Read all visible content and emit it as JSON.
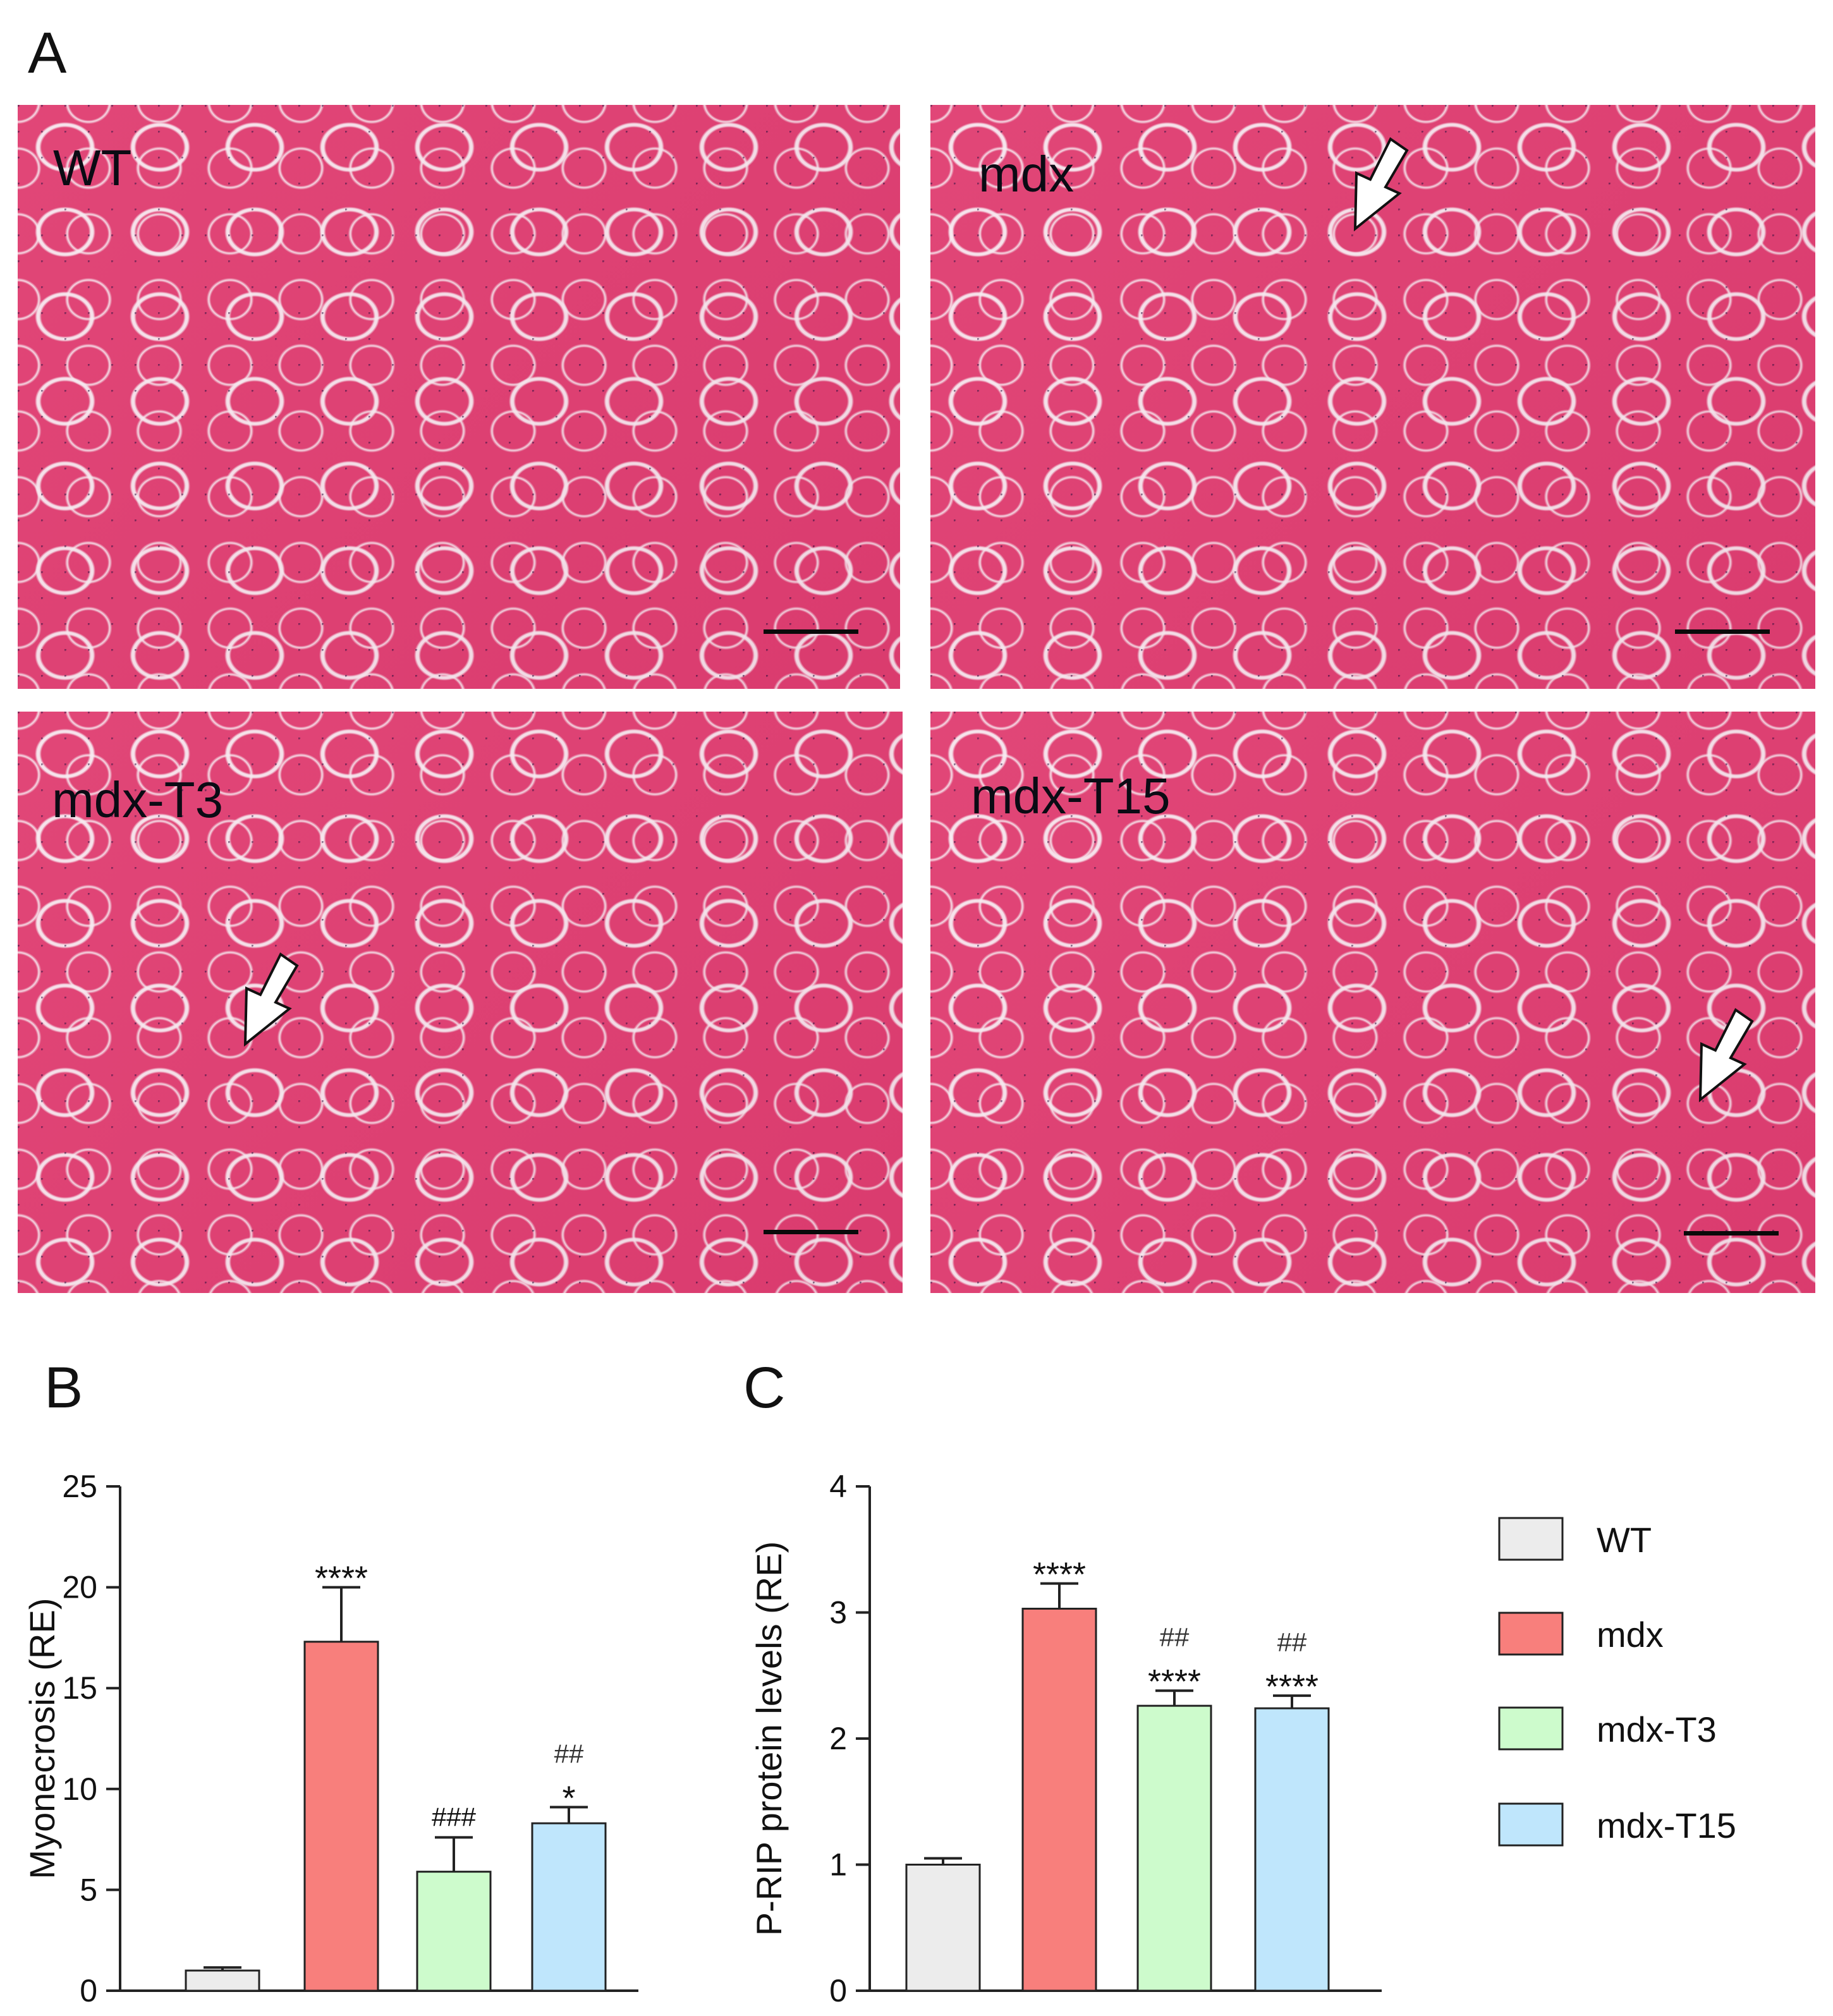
{
  "panels": {
    "a": "A",
    "b": "B",
    "c": "C"
  },
  "micrographs": [
    {
      "label": "WT",
      "arrows": []
    },
    {
      "label": "mdx",
      "arrows": [
        {
          "direction": "down-left"
        }
      ]
    },
    {
      "label": "mdx-T3",
      "arrows": [
        {
          "direction": "down-left"
        }
      ]
    },
    {
      "label": "mdx-T15",
      "arrows": [
        {
          "direction": "down-left"
        }
      ]
    }
  ],
  "colors": {
    "WT": "#ececec",
    "mdx": "#f87f7c",
    "mdx-T3": "#cdfbcc",
    "mdx-T15": "#bfe6fc",
    "tissue": "#e03f72",
    "axis": "#222222"
  },
  "legend": {
    "entries": [
      "WT",
      "mdx",
      "mdx-T3",
      "mdx-T15"
    ]
  },
  "chart_data": [
    {
      "type": "bar",
      "panel": "B",
      "categories": [
        "WT",
        "mdx",
        "mdx-T3",
        "mdx-T15"
      ],
      "values": [
        1.0,
        17.3,
        5.9,
        8.3
      ],
      "errors": [
        0.15,
        2.7,
        1.7,
        0.8
      ],
      "annotations": [
        [
          "",
          ""
        ],
        [
          "",
          "****"
        ],
        [
          "",
          "###"
        ],
        [
          "##",
          "*"
        ]
      ],
      "ylabel": "Myonecrosis (RE)",
      "ylim": [
        0,
        25
      ],
      "yticks": [
        0,
        5,
        10,
        15,
        20,
        25
      ],
      "grid": false
    },
    {
      "type": "bar",
      "panel": "C",
      "categories": [
        "WT",
        "mdx",
        "mdx-T3",
        "mdx-T15"
      ],
      "values": [
        1.0,
        3.03,
        2.26,
        2.24
      ],
      "errors": [
        0.05,
        0.2,
        0.12,
        0.1
      ],
      "annotations": [
        [
          "",
          ""
        ],
        [
          "",
          "****"
        ],
        [
          "##",
          "****"
        ],
        [
          "##",
          "****"
        ]
      ],
      "ylabel": "P-RIP protein levels (RE)",
      "ylim": [
        0,
        4
      ],
      "yticks": [
        0,
        1,
        2,
        3,
        4
      ],
      "grid": false
    }
  ]
}
